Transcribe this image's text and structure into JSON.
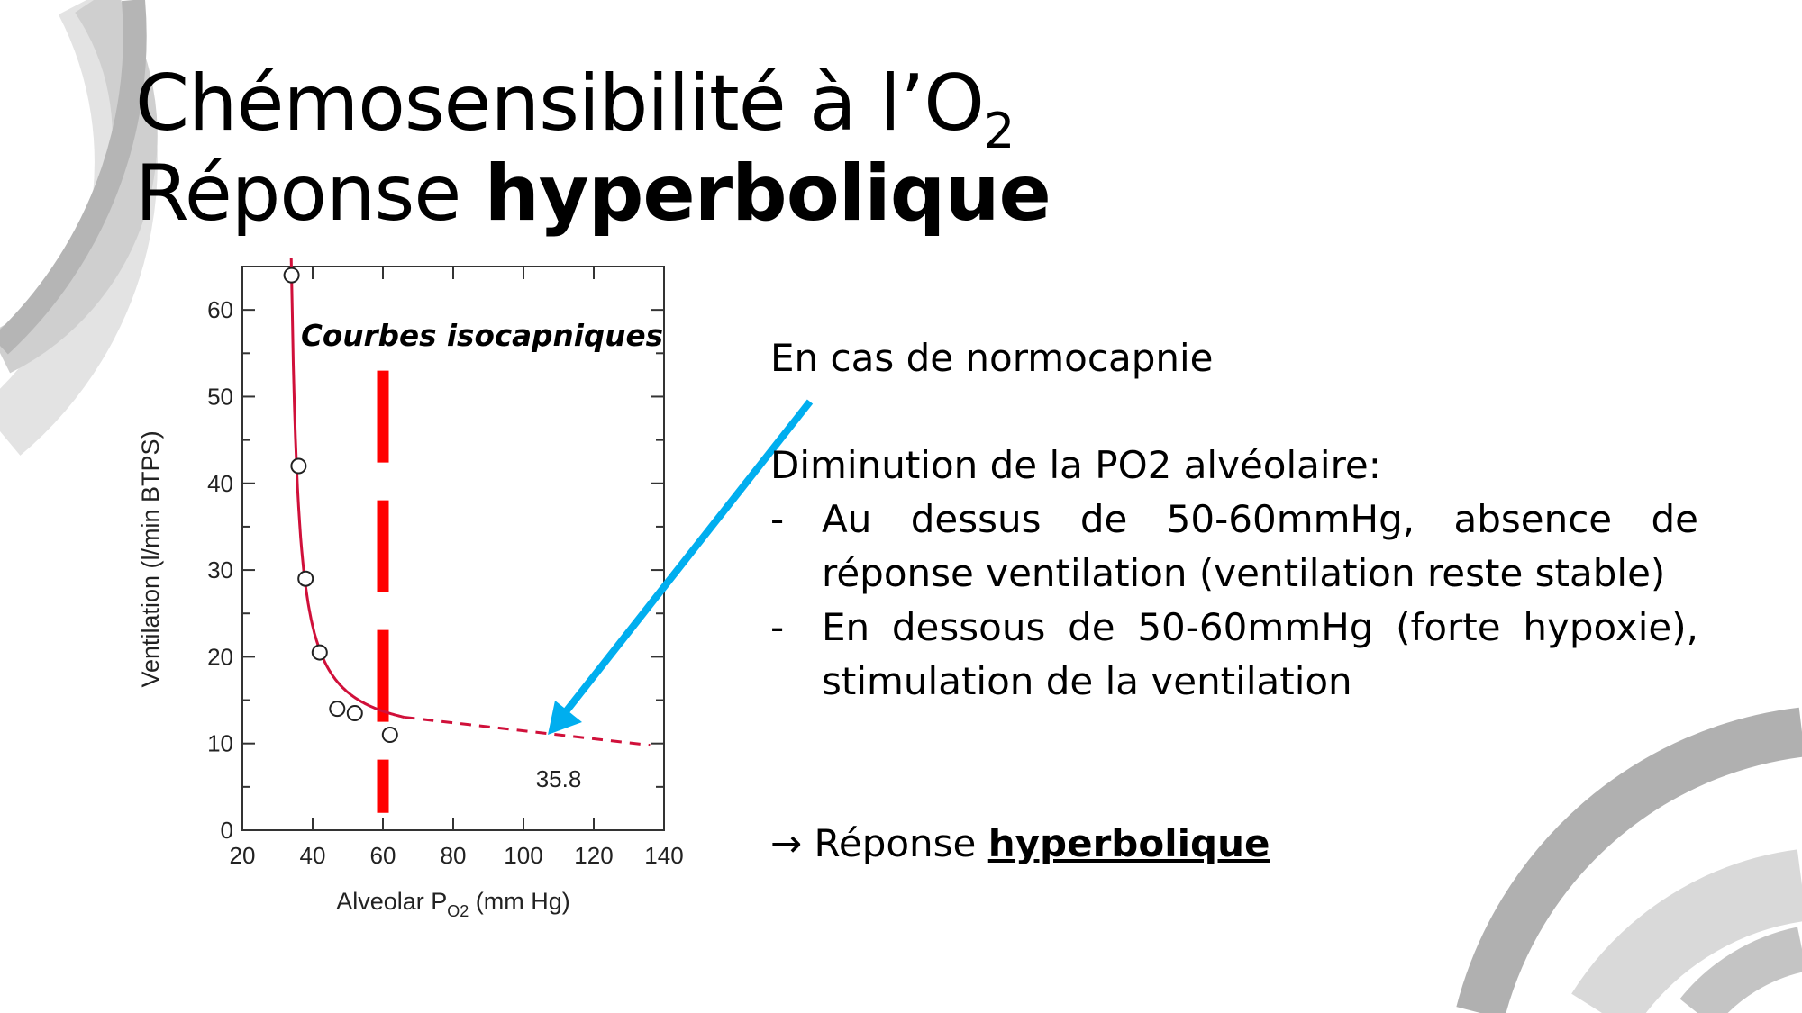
{
  "title": {
    "line1_main": "Chémosensibilité à l’O",
    "line1_sub": "2",
    "line2_plain": "Réponse ",
    "line2_bold": "hyperbolique"
  },
  "text": {
    "intro": "En cas de normocapnie",
    "heading": "Diminution de la PO2 alvéolaire:",
    "bullets": [
      {
        "dash": "-",
        "text": "Au dessus de 50-60mmHg, absence de réponse ventilation (ventilation reste stable)"
      },
      {
        "dash": "-",
        "text": "En dessous de 50-60mmHg (forte hypoxie), stimulation de la ventilation"
      }
    ],
    "conclusion_arrow": "→",
    "conclusion_plain": " Réponse ",
    "conclusion_bold": "hyperbolique"
  },
  "colors": {
    "curve": "#d0103a",
    "threshold": "#ff0000",
    "arrow": "#00aeef",
    "decor_dark": "#b0b0b0",
    "decor_light": "#d9d9d9"
  },
  "chart_data": {
    "type": "scatter",
    "xlabel": "Alveolar P",
    "xlabel_sub": "O2",
    "xlabel_unit": " (mm Hg)",
    "ylabel": "Ventilation (l/min BTPS)",
    "xlim": [
      20,
      140
    ],
    "ylim": [
      0,
      65
    ],
    "xticks": [
      20,
      40,
      60,
      80,
      100,
      120,
      140
    ],
    "yticks": [
      0,
      10,
      20,
      30,
      40,
      50,
      60
    ],
    "points": [
      [
        34,
        64
      ],
      [
        36,
        42
      ],
      [
        38,
        29
      ],
      [
        42,
        20.5
      ],
      [
        47,
        14
      ],
      [
        52,
        13.5
      ],
      [
        62,
        11
      ]
    ],
    "fit": "hyperbolic",
    "asymptote": 9.8,
    "threshold_x": 60,
    "annotation": {
      "text": "35.8",
      "x": 110,
      "y": 6
    },
    "overlay_label": "Courbes isocapniques",
    "grid": false
  }
}
